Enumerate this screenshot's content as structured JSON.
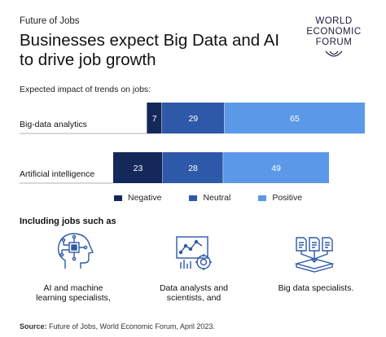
{
  "header": {
    "kicker": "Future of Jobs",
    "title": "Businesses expect Big Data and AI to drive job growth",
    "logo_lines": [
      "WORLD",
      "ECONOMIC",
      "FORUM"
    ]
  },
  "colors": {
    "negative": "#15285a",
    "neutral": "#2e59a8",
    "positive": "#5b99e8",
    "divider": "#999999"
  },
  "chart_data": {
    "type": "bar",
    "stacked": true,
    "orientation": "horizontal",
    "title": "Expected impact of trends on jobs:",
    "categories": [
      "Big-data analytics",
      "Artificial intelligence"
    ],
    "series": [
      {
        "name": "Negative",
        "values": [
          7,
          23
        ]
      },
      {
        "name": "Neutral",
        "values": [
          29,
          28
        ]
      },
      {
        "name": "Positive",
        "values": [
          65,
          49
        ]
      }
    ],
    "data_labels": [
      [
        "7",
        "29",
        "65"
      ],
      [
        "23",
        "28",
        "49"
      ]
    ],
    "legend_position": "bottom"
  },
  "jobs_section": {
    "heading": "Including jobs such as",
    "items": [
      {
        "icon": "ai-head-icon",
        "caption_lines": [
          "AI and machine",
          "learning specialists,"
        ]
      },
      {
        "icon": "data-analysis-icon",
        "caption_lines": [
          "Data analysts and",
          "scientists, and"
        ]
      },
      {
        "icon": "big-data-icon",
        "caption_lines": [
          "Big data specialists."
        ]
      }
    ]
  },
  "source": {
    "label": "Source:",
    "text": " Future of Jobs, World Economic Forum, April 2023."
  }
}
